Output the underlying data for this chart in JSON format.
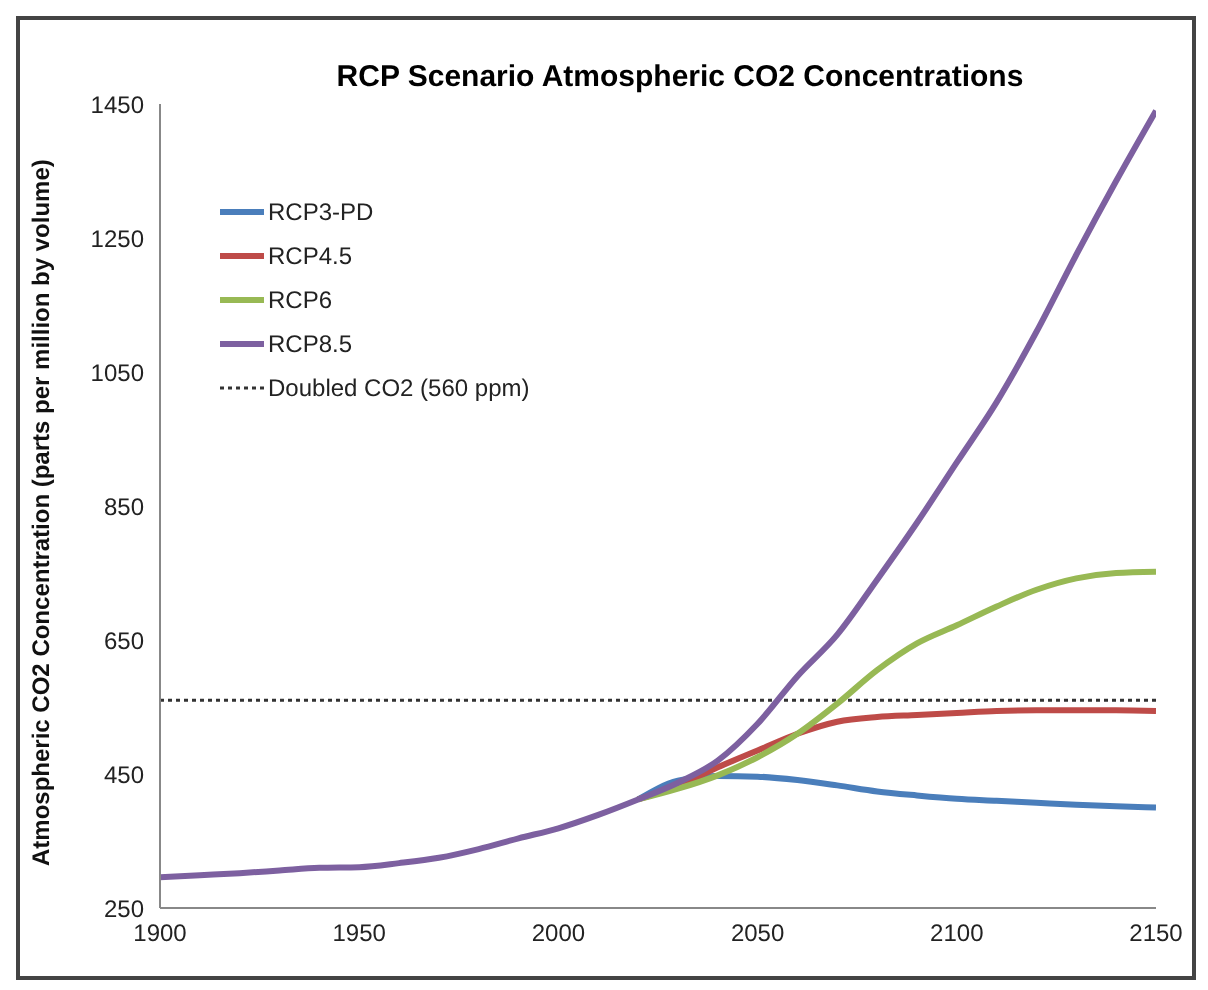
{
  "chart_data": {
    "type": "line",
    "title": "RCP Scenario Atmospheric CO2 Concentrations",
    "ylabel": "Atmospheric CO2 Concentration (parts per million by volume)",
    "x": [
      1900,
      1910,
      1920,
      1930,
      1940,
      1950,
      1960,
      1970,
      1980,
      1990,
      2000,
      2010,
      2020,
      2030,
      2040,
      2050,
      2060,
      2070,
      2080,
      2090,
      2100,
      2110,
      2120,
      2130,
      2140,
      2150
    ],
    "series": [
      {
        "name": "RCP3-PD",
        "color": "#4a7ebb",
        "values": [
          null,
          null,
          null,
          null,
          null,
          null,
          null,
          null,
          null,
          null,
          null,
          null,
          412,
          440,
          447,
          446,
          441,
          433,
          424,
          418,
          413,
          410,
          407,
          404,
          402,
          400
        ]
      },
      {
        "name": "RCP4.5",
        "color": "#be4b48",
        "values": [
          null,
          null,
          null,
          null,
          null,
          null,
          null,
          null,
          null,
          null,
          null,
          null,
          412,
          432,
          460,
          485,
          510,
          528,
          535,
          538,
          541,
          544,
          545,
          545,
          545,
          544
        ]
      },
      {
        "name": "RCP6",
        "color": "#98b954",
        "values": [
          null,
          null,
          null,
          null,
          null,
          null,
          null,
          null,
          null,
          null,
          null,
          null,
          412,
          428,
          448,
          475,
          510,
          555,
          605,
          645,
          672,
          700,
          725,
          742,
          750,
          752
        ]
      },
      {
        "name": "RCP8.5",
        "color": "#7d60a0",
        "values": [
          296,
          299,
          302,
          306,
          310,
          311,
          317,
          325,
          338,
          354,
          369,
          389,
          412,
          437,
          470,
          525,
          596,
          658,
          740,
          825,
          915,
          1005,
          1110,
          1225,
          1335,
          1440
        ]
      }
    ],
    "ref_lines": [
      {
        "axis": "y",
        "value": 560,
        "label": "Doubled CO2 (560 ppm)",
        "color": "#333333",
        "line_style": "dotted"
      }
    ],
    "xlim": [
      1900,
      2150
    ],
    "xticks": [
      1900,
      1950,
      2000,
      2050,
      2100,
      2150
    ],
    "ylim": [
      250,
      1450
    ],
    "yticks": [
      250,
      450,
      650,
      850,
      1050,
      1250,
      1450
    ],
    "grid": false,
    "legend": "top left",
    "marker": "none",
    "line_style": "solid"
  }
}
